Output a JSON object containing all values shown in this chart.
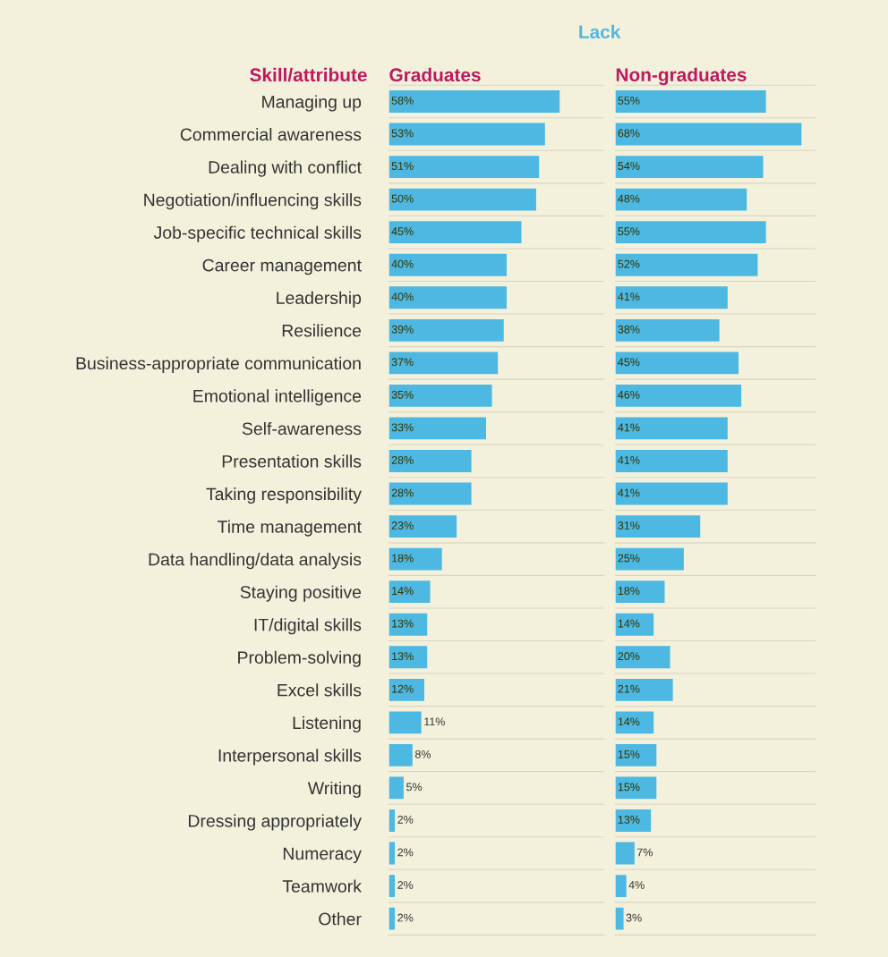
{
  "chart_data": [
    {
      "type": "bar",
      "orientation": "horizontal",
      "title": "Graduates",
      "ylabel": "Skill/attribute",
      "annotations": [
        "Lack"
      ],
      "tick_labels": "y",
      "xlim": [
        0,
        73
      ],
      "categories": [
        "Managing up",
        "Commercial awareness",
        "Dealing with conflict",
        "Negotiation/influencing skills",
        "Job-specific technical skills",
        "Career management",
        "Leadership",
        "Resilience",
        "Business-appropriate communication",
        "Emotional intelligence",
        "Self-awareness",
        "Presentation skills",
        "Taking responsibility",
        "Time management",
        "Data handling/data analysis",
        "Staying positive",
        "IT/digital skills",
        "Problem-solving",
        "Excel skills",
        "Listening",
        "Interpersonal skills",
        "Writing",
        "Dressing appropriately",
        "Numeracy",
        "Teamwork",
        "Other"
      ],
      "values": [
        58,
        53,
        51,
        50,
        45,
        40,
        40,
        39,
        37,
        35,
        33,
        28,
        28,
        23,
        18,
        14,
        13,
        13,
        12,
        11,
        8,
        5,
        2,
        2,
        2,
        2
      ],
      "value_labels": [
        "58%",
        "53%",
        "51%",
        "50%",
        "45%",
        "40%",
        "40%",
        "39%",
        "37%",
        "35%",
        "33%",
        "28%",
        "28%",
        "23%",
        "18%",
        "14%",
        "13%",
        "13%",
        "12%",
        "11%",
        "8%",
        "5%",
        "2%",
        "2%",
        "2%",
        "2%"
      ],
      "color": "#4db8e2"
    },
    {
      "type": "bar",
      "orientation": "horizontal",
      "title": "Non-graduates",
      "xlim": [
        0,
        73
      ],
      "categories": [
        null,
        null,
        null,
        null,
        null,
        null,
        null,
        null,
        null,
        null,
        null,
        null,
        null,
        null,
        null,
        null,
        null,
        null,
        null,
        null,
        null,
        null,
        null,
        null,
        null,
        null
      ],
      "values": [
        55,
        68,
        54,
        48,
        55,
        52,
        41,
        38,
        45,
        46,
        41,
        41,
        41,
        31,
        25,
        18,
        14,
        20,
        21,
        14,
        15,
        15,
        13,
        7,
        4,
        3
      ],
      "value_labels": [
        "55%",
        "68%",
        "54%",
        "48%",
        "55%",
        "52%",
        "41%",
        "38%",
        "45%",
        "46%",
        "41%",
        "41%",
        "41%",
        "31%",
        "25%",
        "18%",
        "14%",
        "20%",
        "21%",
        "14%",
        "15%",
        "15%",
        "13%",
        "7%",
        "4%",
        "3%"
      ],
      "color": "#4db8e2"
    }
  ]
}
